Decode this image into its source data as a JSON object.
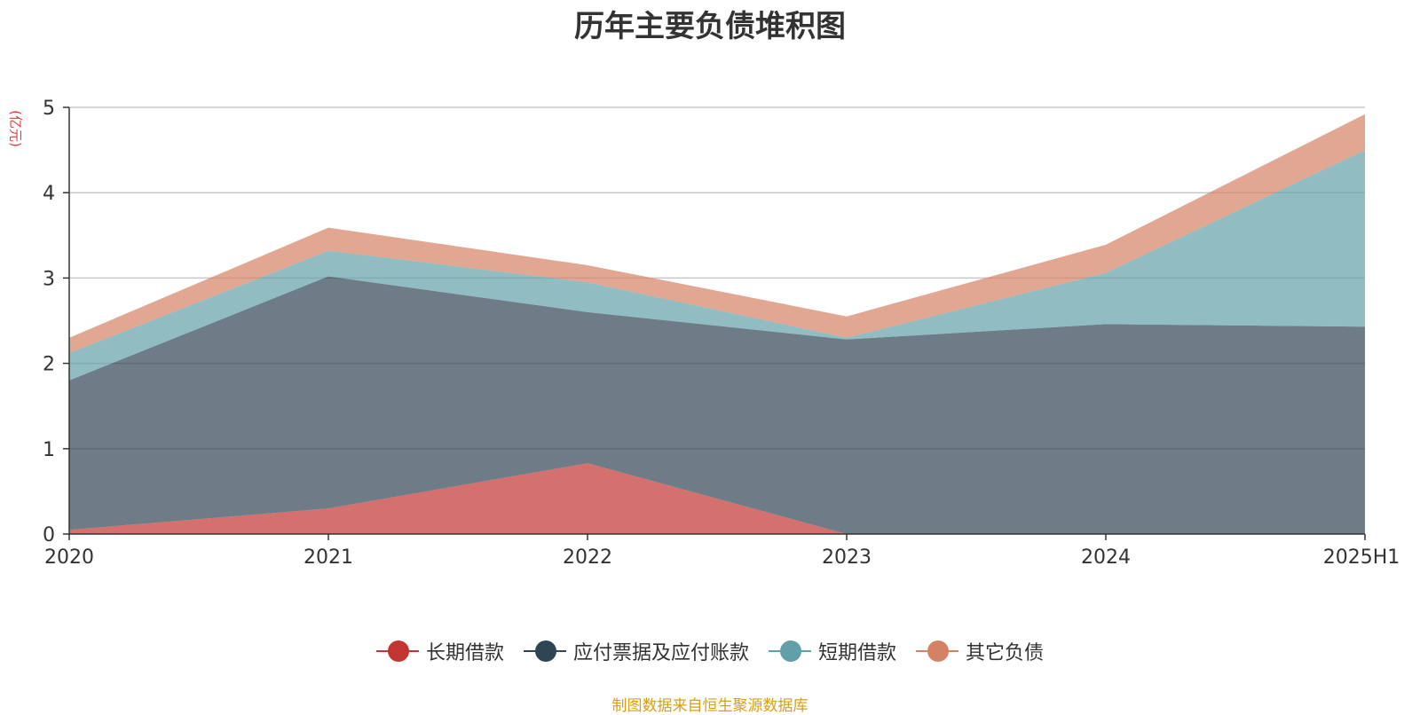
{
  "chart_data": {
    "type": "area",
    "stacked": true,
    "title": "历年主要负债堆积图",
    "unit_label": "(亿元)",
    "categories": [
      "2020",
      "2021",
      "2022",
      "2023",
      "2024",
      "2025H1"
    ],
    "ylim": [
      0,
      5
    ],
    "yticks": [
      0,
      1,
      2,
      3,
      4,
      5
    ],
    "grid": true,
    "legend_position": "bottom",
    "series": [
      {
        "name": "长期借款",
        "values": [
          0.05,
          0.3,
          0.83,
          0.0,
          0.0,
          0.0
        ],
        "color": "#c23531"
      },
      {
        "name": "应付票据及应付账款",
        "values": [
          1.75,
          2.72,
          1.77,
          2.28,
          2.46,
          2.43
        ],
        "color": "#2f4554"
      },
      {
        "name": "短期借款",
        "values": [
          0.32,
          0.3,
          0.35,
          0.02,
          0.6,
          2.07
        ],
        "color": "#61a0a8"
      },
      {
        "name": "其它负债",
        "values": [
          0.18,
          0.27,
          0.2,
          0.25,
          0.33,
          0.42
        ],
        "color": "#d48265"
      }
    ],
    "source_note": "制图数据来自恒生聚源数据库"
  }
}
